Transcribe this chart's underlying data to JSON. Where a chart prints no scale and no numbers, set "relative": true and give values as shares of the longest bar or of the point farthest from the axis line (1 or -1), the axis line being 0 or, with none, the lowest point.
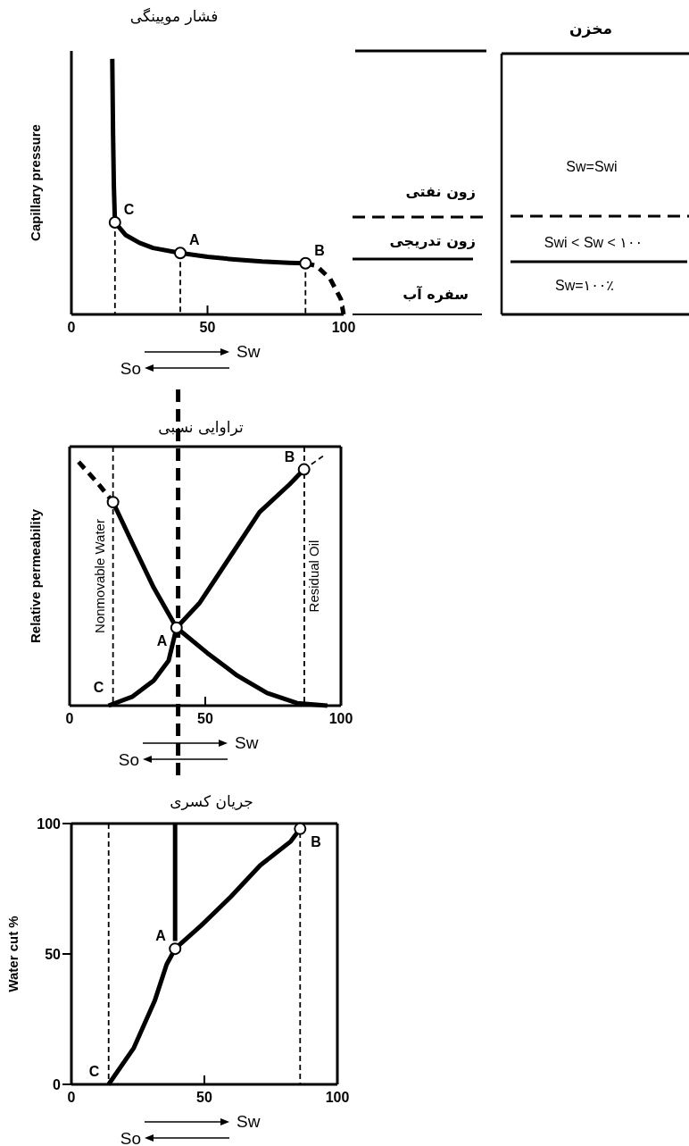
{
  "chart_data": [
    {
      "type": "line",
      "title": "فشار مویینگی",
      "ylabel": "Capillary pressure",
      "relative": true,
      "xlim": [
        0,
        100
      ],
      "xticks": [
        0,
        50,
        100
      ],
      "series": [
        {
          "type": "line",
          "color": "#000000",
          "line_style": "solid",
          "x": [
            15,
            15.3,
            15.6,
            16,
            20,
            25,
            30,
            40,
            50,
            60,
            70,
            80,
            86
          ],
          "values": [
            1,
            0.7,
            0.5,
            0.36,
            0.31,
            0.28,
            0.26,
            0.24,
            0.225,
            0.215,
            0.207,
            0.202,
            0.2
          ]
        },
        {
          "type": "line",
          "color": "#000000",
          "line_style": "dashed",
          "x": [
            86,
            90,
            95,
            99,
            100
          ],
          "values": [
            0.2,
            0.19,
            0.14,
            0.06,
            0
          ]
        },
        {
          "type": "line",
          "color": "#000000",
          "line_style": "dashed",
          "x": [
            16,
            16
          ],
          "values": [
            0.36,
            0
          ]
        },
        {
          "type": "line",
          "color": "#000000",
          "line_style": "dashed",
          "x": [
            86,
            86
          ],
          "values": [
            0.2,
            0
          ]
        },
        {
          "type": "line",
          "color": "#000000",
          "line_style": "dashed",
          "x": [
            40,
            40
          ],
          "values": [
            0.24,
            0
          ]
        },
        {
          "type": "scatter",
          "color": "#000000",
          "marker": "circle",
          "x": [
            16,
            40,
            86
          ],
          "values": [
            0.36,
            0.24,
            0.2
          ]
        }
      ],
      "annotations": [
        {
          "text": "C",
          "x": 16,
          "y": 0.36
        },
        {
          "text": "A",
          "x": 40,
          "y": 0.24
        },
        {
          "text": "B",
          "x": 86,
          "y": 0.2
        },
        "Sw",
        "So"
      ]
    },
    {
      "type": "other",
      "title": "مخزن",
      "annotations": [
        "زون نفتی",
        "زون تدریجی",
        "سفره آب",
        "Sw=Swi",
        "Swi < Sw < ۱۰۰",
        "Sw=۱۰۰٪"
      ]
    },
    {
      "type": "line",
      "title": "تراوایی نسبی",
      "ylabel": "Relative permeability",
      "relative": true,
      "xlim": [
        0,
        100
      ],
      "xticks": [
        0,
        50,
        100
      ],
      "series": [
        {
          "type": "line",
          "color": "#000000",
          "line_style": "dashed",
          "x": [
            3.3,
            10,
            16
          ],
          "values": [
            0.97,
            0.89,
            0.81
          ]
        },
        {
          "type": "line",
          "color": "#000000",
          "line_style": "solid",
          "x": [
            16,
            23,
            31,
            39.4,
            50.7,
            61.7,
            72.8,
            83.8,
            95
          ],
          "values": [
            0.81,
            0.65,
            0.47,
            0.31,
            0.21,
            0.12,
            0.05,
            0.01,
            0
          ]
        },
        {
          "type": "line",
          "color": "#000000",
          "line_style": "solid",
          "x": [
            14.3,
            23,
            31,
            36.5,
            39.4,
            48,
            59,
            70,
            81,
            86.4
          ],
          "values": [
            0,
            0.035,
            0.1,
            0.18,
            0.31,
            0.41,
            0.59,
            0.77,
            0.88,
            0.94
          ]
        },
        {
          "type": "line",
          "color": "#000000",
          "line_style": "dashed",
          "x": [
            86.4,
            94.3
          ],
          "values": [
            0.94,
            1
          ]
        },
        {
          "type": "scatter",
          "color": "#000000",
          "marker": "circle",
          "x": [
            16,
            39.4,
            86.4
          ],
          "values": [
            0.81,
            0.31,
            0.94
          ]
        }
      ],
      "ref_lines": [
        {
          "axis": "x",
          "value": 16,
          "label": "Nonmovable Water",
          "line_style": "dashed"
        },
        {
          "axis": "x",
          "value": 86.5,
          "label": "Residual Oil",
          "line_style": "dashed"
        },
        {
          "axis": "x",
          "value": 40,
          "line_style": "dashed",
          "color": "#000000"
        }
      ],
      "annotations": [
        {
          "text": "C",
          "x": 16,
          "y": 0.02
        },
        {
          "text": "A",
          "x": 39.4,
          "y": 0.31
        },
        {
          "text": "B",
          "x": 86.4,
          "y": 0.94
        },
        "Sw",
        "So"
      ]
    },
    {
      "type": "line",
      "title": "جریان کسری",
      "ylabel": "Water cut %",
      "xlim": [
        0,
        100
      ],
      "xticks": [
        0,
        50,
        100
      ],
      "ylim": [
        0,
        100
      ],
      "yticks": [
        0,
        50,
        100
      ],
      "series": [
        {
          "type": "line",
          "color": "#000000",
          "line_style": "solid",
          "x": [
            14,
            23.5,
            31.3,
            35.8,
            39,
            48.9,
            60,
            71,
            82.3,
            86
          ],
          "values": [
            0,
            14,
            32,
            46,
            52,
            61,
            72,
            84,
            93,
            98
          ]
        },
        {
          "type": "line",
          "color": "#000000",
          "line_style": "solid",
          "x": [
            39,
            39
          ],
          "values": [
            100,
            55
          ]
        },
        {
          "type": "scatter",
          "color": "#000000",
          "marker": "circle",
          "x": [
            39,
            86
          ],
          "values": [
            52,
            98
          ]
        }
      ],
      "ref_lines": [
        {
          "axis": "x",
          "value": 14,
          "line_style": "dashed"
        },
        {
          "axis": "x",
          "value": 86,
          "line_style": "dashed"
        }
      ],
      "annotations": [
        {
          "text": "C",
          "x": 14,
          "y": 0
        },
        {
          "text": "A",
          "x": 39,
          "y": 52
        },
        {
          "text": "B",
          "x": 86,
          "y": 98
        },
        "Sw",
        "So"
      ]
    }
  ]
}
